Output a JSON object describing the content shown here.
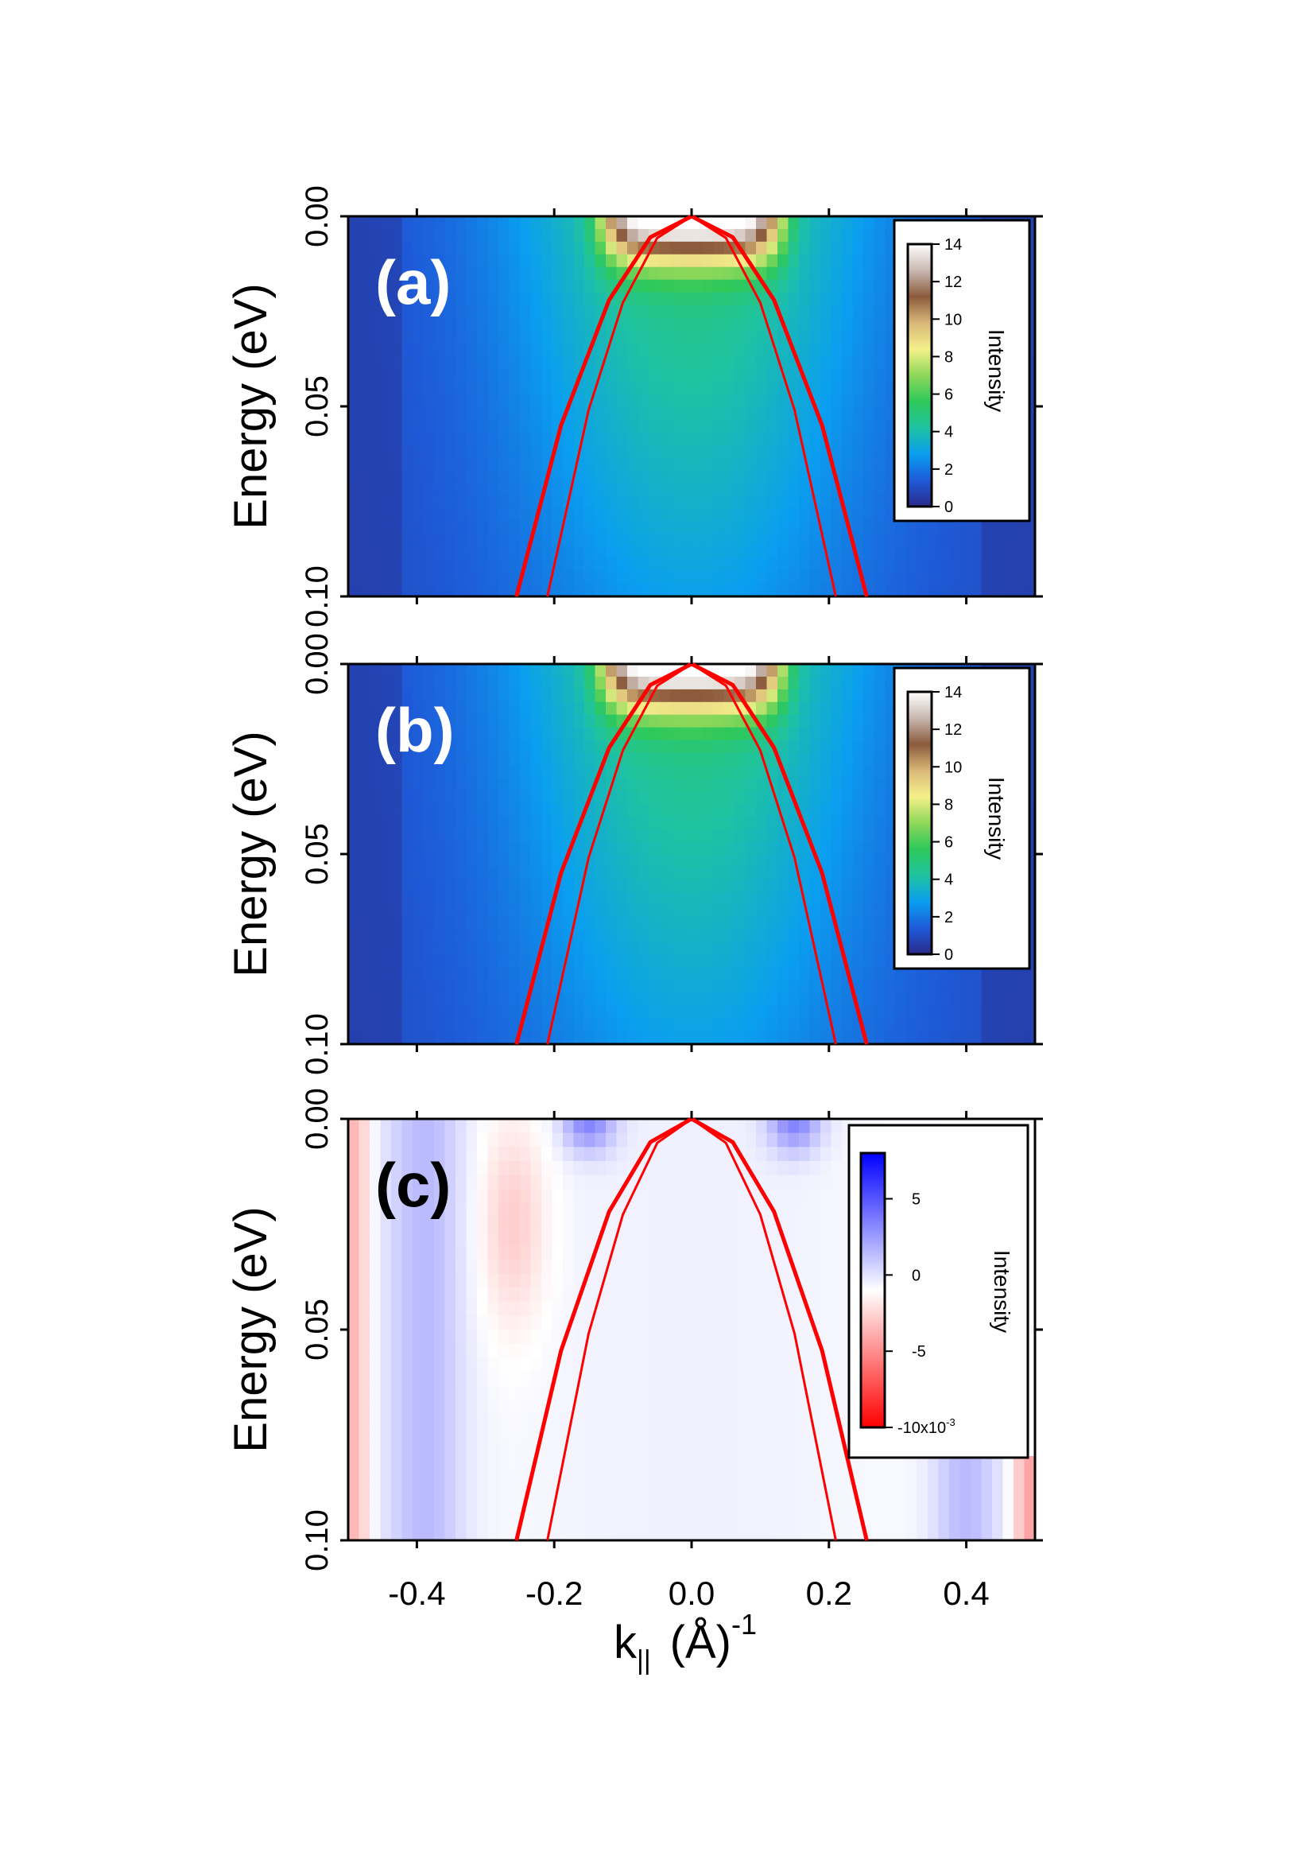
{
  "colors": {
    "band": "#ff0000",
    "axis": "#000000",
    "rainbow_scale": [
      "#2a2a8a",
      "#1e5bd8",
      "#0a9ef0",
      "#1fc3a0",
      "#2ec85a",
      "#8ed85a",
      "#f4f08a",
      "#d9b878",
      "#8b5a3c",
      "#c8b8b0",
      "#ffffff"
    ],
    "diff_scale": [
      "#ff0000",
      "#ffffff",
      "#0000ff"
    ]
  },
  "panels": [
    {
      "label": "(a)",
      "ylabel": "Energy (eV)",
      "yticks": [
        "0.00",
        "0.05",
        "0.10"
      ],
      "colorbar": {
        "title": "Intensity",
        "ticks": [
          "14",
          "12",
          "10",
          "8",
          "6",
          "4",
          "2",
          "0"
        ],
        "scale": "rainbow"
      }
    },
    {
      "label": "(b)",
      "ylabel": "Energy (eV)",
      "yticks": [
        "0.00",
        "0.05",
        "0.10"
      ],
      "colorbar": {
        "title": "Intensity",
        "ticks": [
          "14",
          "12",
          "10",
          "8",
          "6",
          "4",
          "2",
          "0"
        ],
        "scale": "rainbow"
      }
    },
    {
      "label": "(c)",
      "ylabel": "Energy (eV)",
      "yticks": [
        "0.00",
        "0.05",
        "0.10"
      ],
      "colorbar": {
        "title": "Intensity",
        "ticks": [
          "5",
          "0",
          "-5"
        ],
        "bottom_tick": "-10x10",
        "bottom_tick_exp": "-3",
        "scale": "diverging"
      }
    }
  ],
  "x_axis": {
    "label_main": "k",
    "label_sub": "||",
    "label_rest": "(Å)",
    "label_exp": "-1",
    "ticks": [
      "-0.4",
      "-0.2",
      "0.0",
      "0.2",
      "0.4"
    ]
  },
  "chart_data": {
    "type": "heatmap",
    "xlim": [
      -0.5,
      0.5
    ],
    "ylim": [
      0.1,
      0.0
    ],
    "xticks": [
      -0.4,
      -0.2,
      0.0,
      0.2,
      0.4
    ],
    "yticks": [
      0.0,
      0.05,
      0.1
    ],
    "colorbar_range_ab": [
      0,
      14
    ],
    "colorbar_range_c": [
      -0.01,
      0.008
    ],
    "bands": [
      {
        "x": [
          -0.255,
          -0.19,
          -0.12,
          -0.06,
          0.0,
          0.06,
          0.12,
          0.19,
          0.255
        ],
        "y": [
          0.1,
          0.055,
          0.022,
          0.0055,
          0.0,
          0.0055,
          0.022,
          0.055,
          0.1
        ]
      },
      {
        "x": [
          -0.21,
          -0.15,
          -0.1,
          -0.05,
          0.0,
          0.05,
          0.1,
          0.15,
          0.21
        ],
        "y": [
          0.1,
          0.051,
          0.0227,
          0.0057,
          0.0,
          0.0057,
          0.0227,
          0.051,
          0.1
        ]
      }
    ]
  }
}
